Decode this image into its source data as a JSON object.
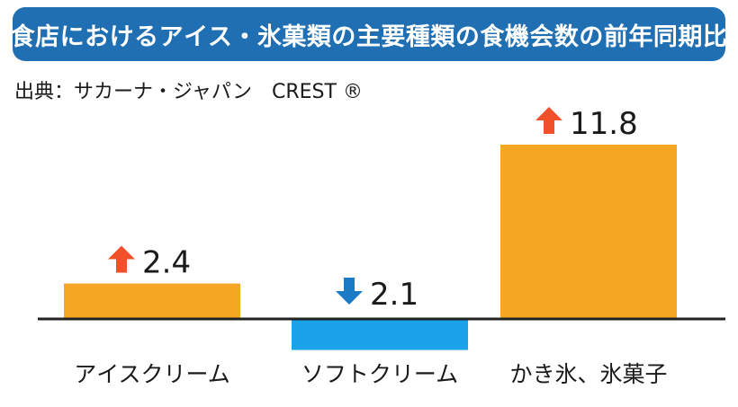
{
  "title": "飲食店におけるアイス・氷菓類の主要種類の食機会数の前年同期比%",
  "source": "出典：サカーナ・ジャパン　CREST ®",
  "colors": {
    "banner": "#1f6fb2",
    "positive_bar": "#f5a623",
    "negative_bar": "#1aa3e8",
    "up_arrow": "#f0502a",
    "down_arrow": "#1a7bc4",
    "baseline": "#222222"
  },
  "chart_data": {
    "type": "bar",
    "categories": [
      "アイスクリーム",
      "ソフトクリーム",
      "かき氷、氷菓子"
    ],
    "values": [
      2.4,
      -2.1,
      11.8
    ],
    "value_labels": [
      "2.4",
      "2.1",
      "11.8"
    ],
    "directions": [
      "up",
      "down",
      "up"
    ],
    "ylim": [
      -2.8,
      14
    ]
  }
}
